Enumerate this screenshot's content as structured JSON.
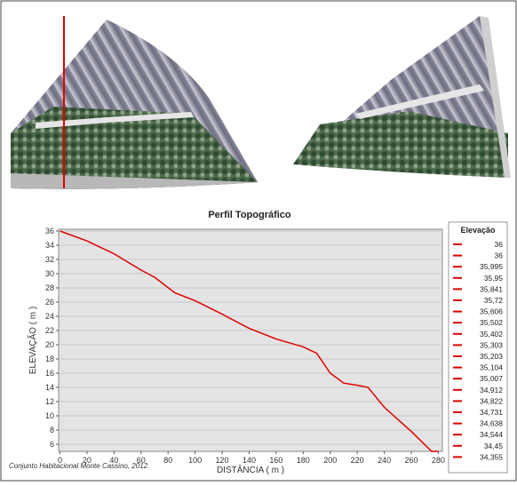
{
  "chart_data": {
    "type": "line",
    "title": "Perfil Topográfico",
    "x_label": "DISTÂNCIA ( m )",
    "y_label": "ELEVAÇÃO ( m )",
    "caption": "Conjunto Habitacional Monte Cassino, 2012.",
    "x": [
      0,
      20,
      40,
      60,
      70,
      85,
      100,
      120,
      140,
      160,
      180,
      190,
      200,
      210,
      220,
      228,
      240,
      260,
      275,
      280
    ],
    "values": [
      36,
      34.6,
      32.8,
      30.5,
      29.5,
      27.3,
      26.2,
      24.3,
      22.3,
      20.8,
      19.7,
      18.8,
      16.0,
      14.6,
      14.3,
      14.0,
      11.2,
      7.8,
      5.0,
      5.0
    ],
    "color": "#e00000",
    "xlim": [
      -1,
      283
    ],
    "ylim": [
      5,
      36.25
    ],
    "xticks": [
      0,
      20,
      40,
      60,
      80,
      100,
      120,
      140,
      160,
      180,
      200,
      220,
      240,
      260,
      280
    ],
    "yticks": [
      6,
      8,
      10,
      12,
      14,
      16,
      18,
      20,
      22,
      24,
      26,
      28,
      30,
      32,
      34,
      36
    ],
    "grid": true,
    "legend": {
      "title": "Elevação",
      "entries": [
        "36",
        "36",
        "35,995",
        "35,95",
        "35,841",
        "35,72",
        "35,606",
        "35,502",
        "35,402",
        "35,303",
        "35,203",
        "35,104",
        "35,007",
        "34,912",
        "34,822",
        "34,731",
        "34,638",
        "34,544",
        "34,45",
        "34,355"
      ]
    }
  }
}
